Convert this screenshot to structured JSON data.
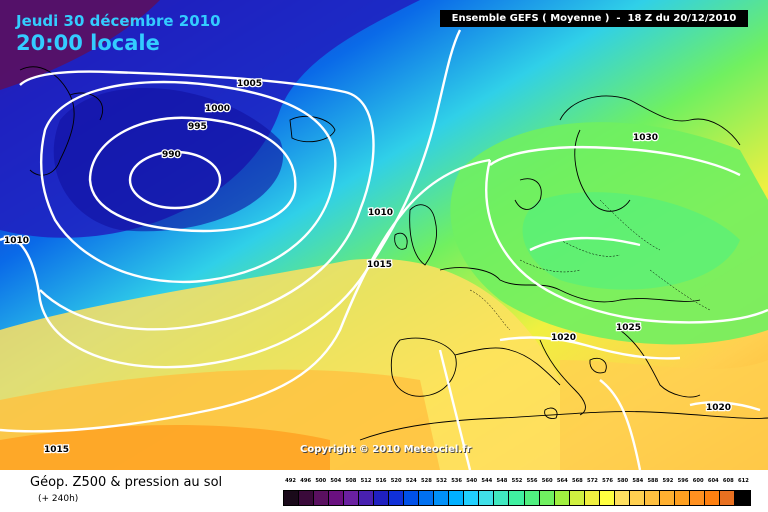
{
  "header": {
    "date": "Jeudi 30 décembre 2010",
    "time": "20:00 locale",
    "model_info": "Ensemble GEFS ( Moyenne )  -  18 Z du 20/12/2010"
  },
  "isobar_labels": [
    "1005",
    "1000",
    "995",
    "990",
    "1010",
    "1010",
    "1015",
    "1015",
    "1030",
    "1025",
    "1020",
    "1020"
  ],
  "copyright": "Copyright © 2010 Meteociel.fr",
  "footer": {
    "title": "Géop. Z500 & pression au sol",
    "subtitle": "(+ 240h)"
  },
  "legend": {
    "values": [
      "492",
      "496",
      "500",
      "504",
      "508",
      "512",
      "516",
      "520",
      "524",
      "528",
      "532",
      "536",
      "540",
      "544",
      "548",
      "552",
      "556",
      "560",
      "564",
      "568",
      "572",
      "576",
      "580",
      "584",
      "588",
      "592",
      "596",
      "600",
      "604",
      "608",
      "612"
    ],
    "colors": [
      "#1a0a1a",
      "#3a0a3a",
      "#5a1060",
      "#6a1080",
      "#6a20a0",
      "#4820b0",
      "#2020c0",
      "#1030d8",
      "#0050e8",
      "#0070f0",
      "#0090f8",
      "#00b0ff",
      "#20d0ff",
      "#40e0e8",
      "#40e8c0",
      "#40f0a0",
      "#50f080",
      "#70f060",
      "#a0f040",
      "#d0f040",
      "#f0f040",
      "#ffff40",
      "#ffe060",
      "#ffd050",
      "#ffc040",
      "#ffb030",
      "#ffa020",
      "#ff9020",
      "#ff8010",
      "#e87020",
      "#000000"
    ]
  }
}
